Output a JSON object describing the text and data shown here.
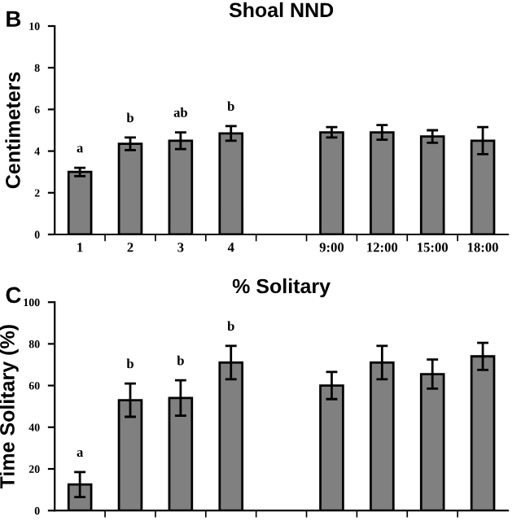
{
  "chart_data": [
    {
      "type": "bar",
      "title": "Shoal NND",
      "ylabel": "Centimeters",
      "categories": [
        "1",
        "2",
        "3",
        "4",
        null,
        "9:00",
        "12:00",
        "15:00",
        "18:00"
      ],
      "series": [
        {
          "color": "#808080",
          "values": [
            3.0,
            4.35,
            4.5,
            4.85,
            null,
            4.9,
            4.9,
            4.7,
            4.5
          ],
          "errors": [
            0.2,
            0.3,
            0.4,
            0.35,
            null,
            0.25,
            0.35,
            0.3,
            0.65
          ]
        }
      ],
      "ylim": [
        0,
        10
      ],
      "yticks": [
        0,
        2,
        4,
        6,
        8,
        10
      ],
      "grid": false,
      "legend": false,
      "annotations": [
        "B",
        "a",
        "b",
        "ab",
        "b"
      ]
    },
    {
      "type": "bar",
      "title": "% Solitary",
      "ylabel": "Time Solitary (%)",
      "categories": [
        null,
        null,
        null,
        null,
        null,
        null,
        null,
        null,
        null
      ],
      "series": [
        {
          "color": "#808080",
          "values": [
            12.5,
            53,
            54,
            71,
            null,
            60,
            71,
            65.5,
            74
          ],
          "errors": [
            6,
            8,
            8.5,
            8,
            null,
            6.5,
            8,
            7,
            6.5
          ]
        }
      ],
      "ylim": [
        0,
        100
      ],
      "yticks": [
        0,
        20,
        40,
        60,
        80,
        100
      ],
      "grid": false,
      "legend": false,
      "annotations": [
        "C",
        "a",
        "b",
        "b",
        "b"
      ]
    }
  ]
}
